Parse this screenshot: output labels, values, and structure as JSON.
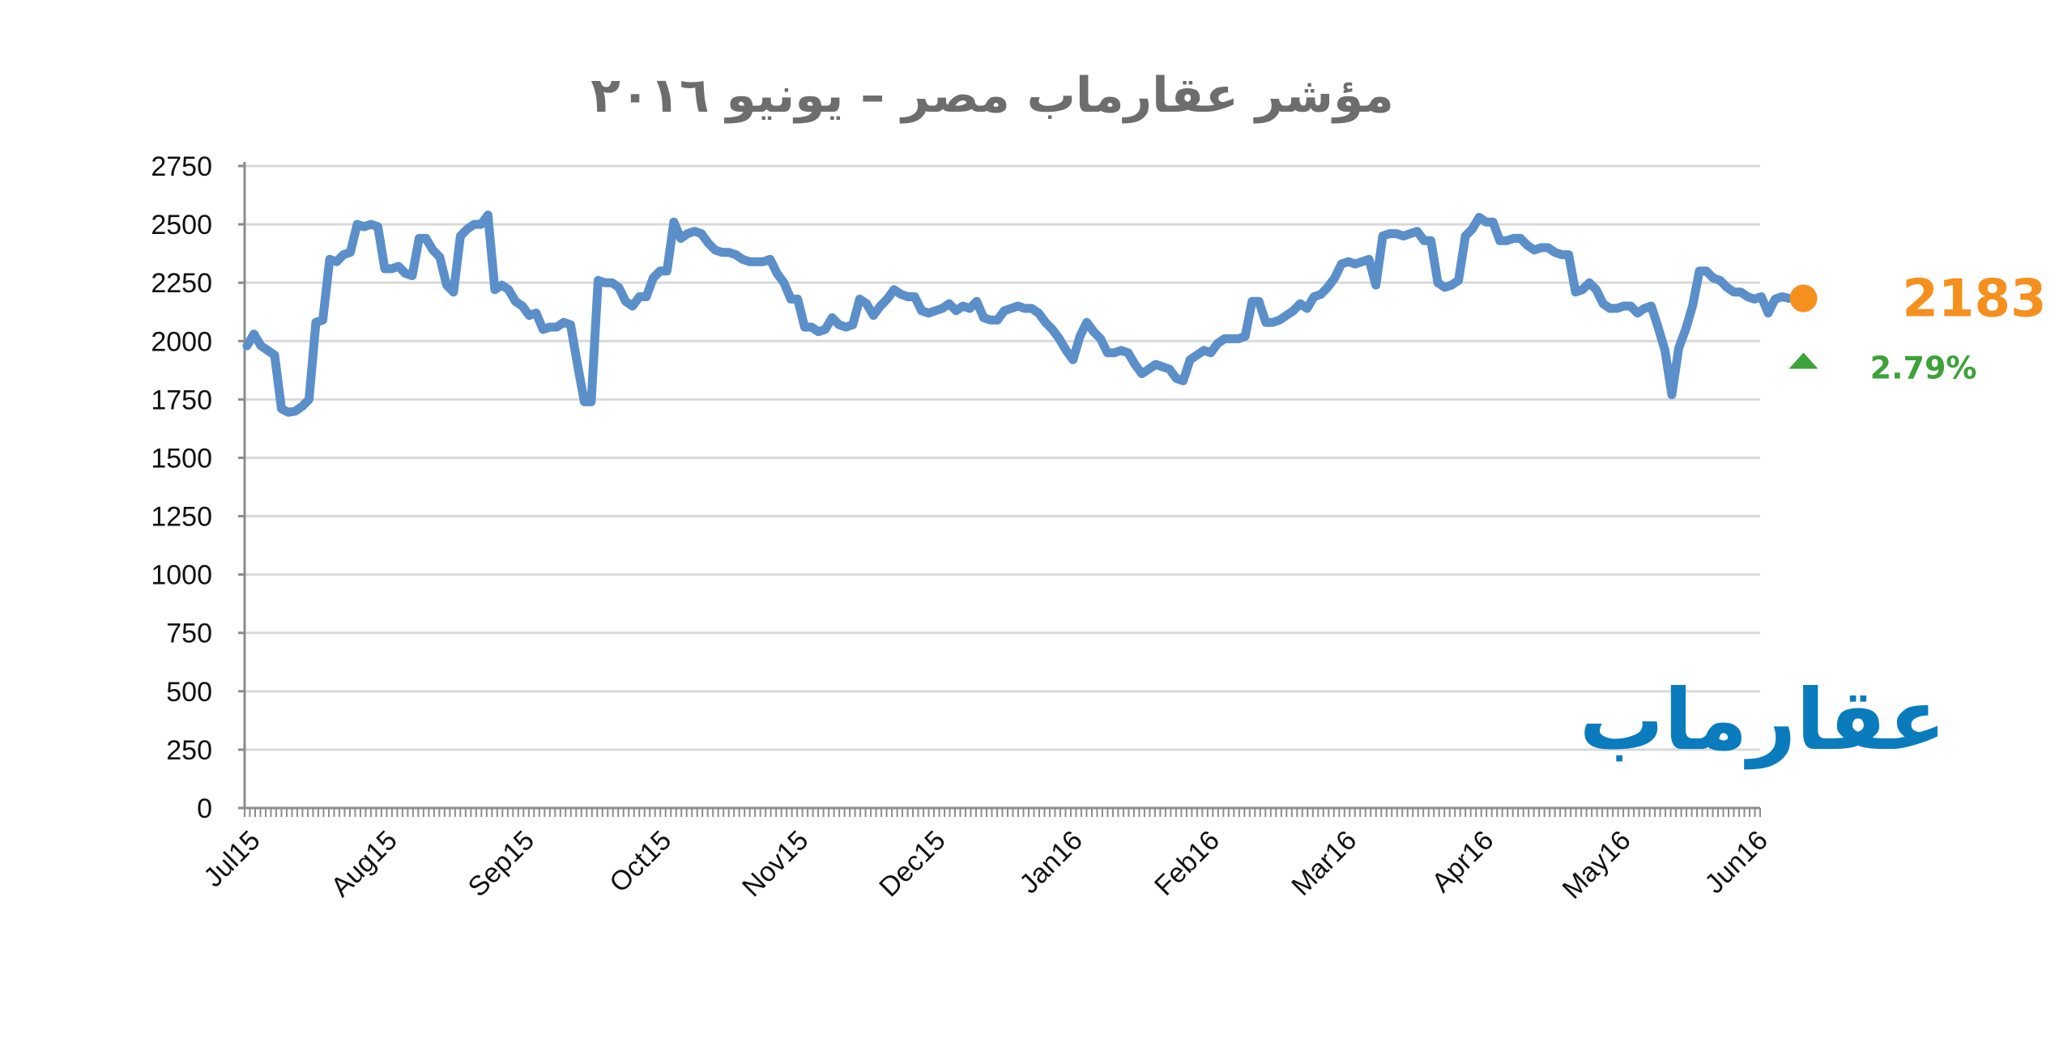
{
  "chart_data": {
    "type": "line",
    "title": "مؤشر عقارماب مصر – يونيو ٢٠١٦",
    "xlabel": "",
    "ylabel": "",
    "ylim": [
      0,
      2750
    ],
    "yticks": [
      0,
      250,
      500,
      750,
      1000,
      1250,
      1500,
      1750,
      2000,
      2250,
      2500,
      2750
    ],
    "month_labels": [
      "Jul15",
      "Aug15",
      "Sep15",
      "Oct15",
      "Nov15",
      "Dec15",
      "Jan16",
      "Feb16",
      "Mar16",
      "Apr16",
      "May16",
      "Jun16"
    ],
    "grid": true,
    "series": [
      {
        "color": "#5b8fc9",
        "x_range": [
          0,
          11.25
        ],
        "values": [
          1980,
          2030,
          1980,
          1960,
          1940,
          1710,
          1695,
          1700,
          1720,
          1750,
          2080,
          2090,
          2350,
          2340,
          2370,
          2380,
          2500,
          2490,
          2500,
          2490,
          2310,
          2310,
          2320,
          2290,
          2280,
          2440,
          2440,
          2390,
          2360,
          2240,
          2210,
          2450,
          2480,
          2500,
          2500,
          2540,
          2220,
          2240,
          2220,
          2170,
          2150,
          2110,
          2120,
          2050,
          2060,
          2060,
          2080,
          2070,
          1900,
          1740,
          1740,
          2260,
          2250,
          2250,
          2230,
          2170,
          2150,
          2190,
          2190,
          2270,
          2300,
          2300,
          2510,
          2440,
          2460,
          2470,
          2460,
          2420,
          2390,
          2380,
          2380,
          2370,
          2350,
          2340,
          2340,
          2340,
          2350,
          2290,
          2250,
          2180,
          2180,
          2060,
          2060,
          2040,
          2050,
          2100,
          2070,
          2060,
          2070,
          2180,
          2160,
          2110,
          2150,
          2180,
          2220,
          2200,
          2190,
          2190,
          2130,
          2120,
          2130,
          2140,
          2160,
          2130,
          2150,
          2140,
          2170,
          2100,
          2090,
          2090,
          2130,
          2140,
          2150,
          2140,
          2140,
          2120,
          2080,
          2050,
          2010,
          1960,
          1920,
          2020,
          2080,
          2040,
          2010,
          1950,
          1950,
          1960,
          1950,
          1900,
          1860,
          1880,
          1900,
          1890,
          1880,
          1840,
          1830,
          1920,
          1940,
          1960,
          1950,
          1990,
          2010,
          2010,
          2010,
          2020,
          2170,
          2170,
          2080,
          2080,
          2090,
          2110,
          2130,
          2160,
          2140,
          2190,
          2200,
          2230,
          2270,
          2330,
          2340,
          2330,
          2340,
          2350,
          2240,
          2450,
          2460,
          2460,
          2450,
          2460,
          2470,
          2430,
          2430,
          2250,
          2230,
          2240,
          2260,
          2450,
          2480,
          2530,
          2510,
          2510,
          2430,
          2430,
          2440,
          2440,
          2410,
          2390,
          2400,
          2400,
          2380,
          2370,
          2370,
          2210,
          2220,
          2250,
          2220,
          2160,
          2140,
          2140,
          2150,
          2150,
          2120,
          2140,
          2150,
          2060,
          1960,
          1770,
          1970,
          2050,
          2150,
          2300,
          2300,
          2270,
          2260,
          2230,
          2210,
          2210,
          2190,
          2180,
          2190,
          2120,
          2180,
          2190,
          2183
        ]
      }
    ],
    "last_value": "2183",
    "change": "2.79%",
    "last_value_color": "#f5901e",
    "change_color": "#3ea23a"
  },
  "logo": {
    "text": "عقارماب",
    "color": "#0a7cbe"
  }
}
